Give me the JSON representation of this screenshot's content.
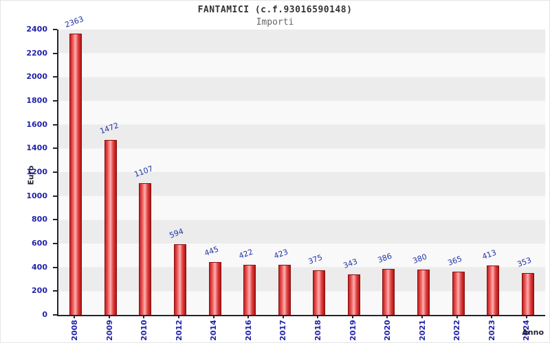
{
  "title": "FANTAMICI (c.f.93016590148)",
  "subtitle": "Importi",
  "chart_data": {
    "type": "bar",
    "title": "FANTAMICI (c.f.93016590148)",
    "subtitle": "Importi",
    "xlabel": "Anno",
    "ylabel": "Euro",
    "categories": [
      "2008",
      "2009",
      "2010",
      "2012",
      "2014",
      "2016",
      "2017",
      "2018",
      "2019",
      "2020",
      "2021",
      "2022",
      "2023",
      "2024"
    ],
    "values": [
      2363,
      1472,
      1107,
      594,
      445,
      422,
      423,
      375,
      343,
      386,
      380,
      365,
      413,
      353
    ],
    "ylim": [
      0,
      2400
    ],
    "ytick_step": 200,
    "grid": "horizontal-bands",
    "legend": "none",
    "bar_color": "#e03131",
    "axis_label_color": "#2222aa",
    "value_label_color": "#2233aa"
  }
}
